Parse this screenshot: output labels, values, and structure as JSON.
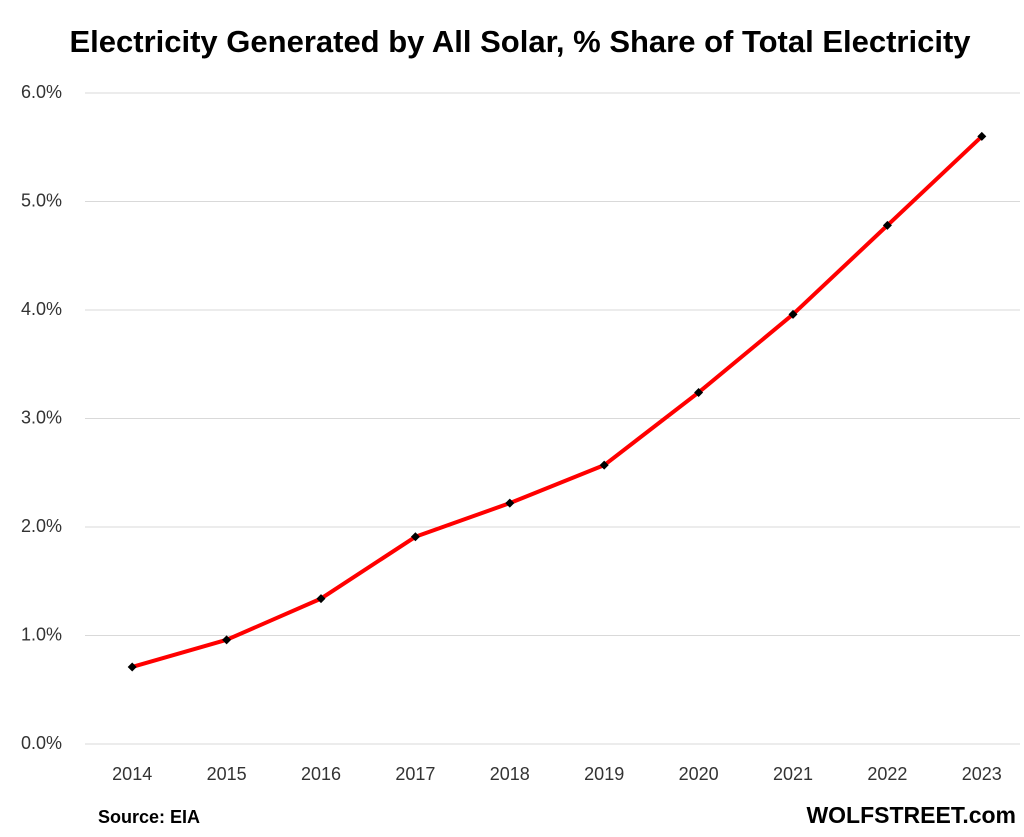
{
  "chart_data": {
    "type": "line",
    "title": "Electricity Generated by All Solar, % Share of Total Electricity",
    "categories": [
      "2014",
      "2015",
      "2016",
      "2017",
      "2018",
      "2019",
      "2020",
      "2021",
      "2022",
      "2023"
    ],
    "values": [
      0.71,
      0.96,
      1.34,
      1.91,
      2.22,
      2.57,
      3.24,
      3.96,
      4.78,
      5.6
    ],
    "color": "#ff0000",
    "marker_color": "#000000",
    "ylim": [
      0,
      6
    ],
    "yticks": [
      {
        "value": 0,
        "label": "0.0%"
      },
      {
        "value": 1,
        "label": "1.0%"
      },
      {
        "value": 2,
        "label": "2.0%"
      },
      {
        "value": 3,
        "label": "3.0%"
      },
      {
        "value": 4,
        "label": "4.0%"
      },
      {
        "value": 5,
        "label": "5.0%"
      },
      {
        "value": 6,
        "label": "6.0%"
      }
    ],
    "grid": true,
    "source": "Source: EIA",
    "watermark": "WOLFSTREET.com"
  }
}
